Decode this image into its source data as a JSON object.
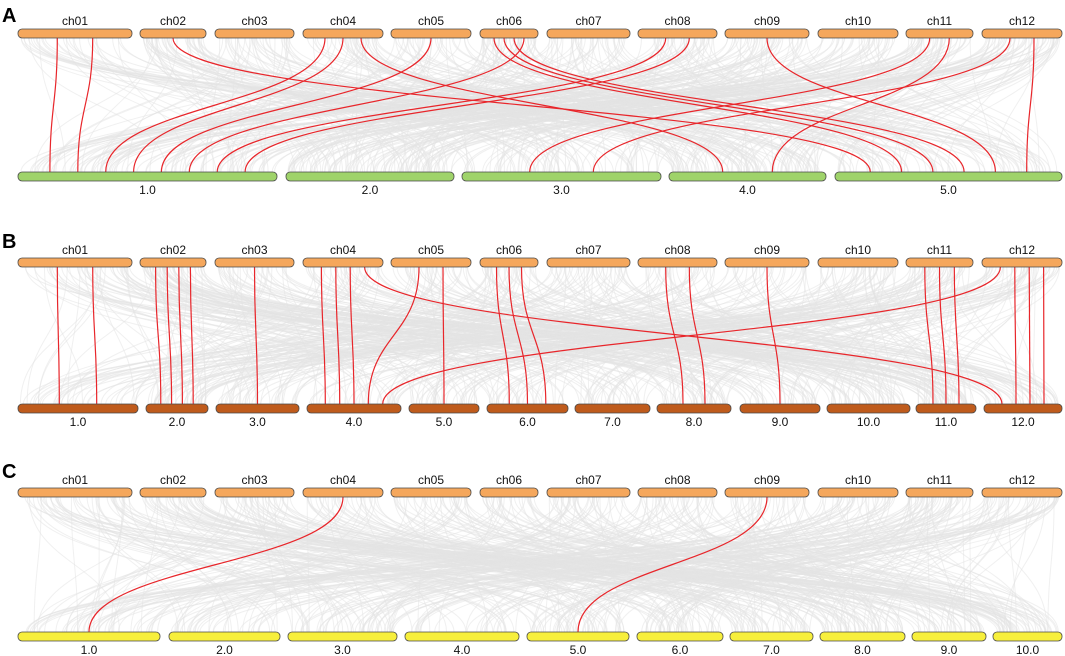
{
  "figure": {
    "background_link_color": "#e3e3e3",
    "highlight_link_color": "#e8262b",
    "top_chromosome_color": "#f5a75c",
    "top_chromosomes": [
      "ch01",
      "ch02",
      "ch03",
      "ch04",
      "ch05",
      "ch06",
      "ch07",
      "ch08",
      "ch09",
      "ch10",
      "ch11",
      "ch12"
    ]
  },
  "panels": [
    {
      "letter": "A",
      "bottom_color": "#9fd36a",
      "bottom_chromosomes": [
        "1.0",
        "2.0",
        "3.0",
        "4.0",
        "5.0"
      ],
      "highlighted_links": [
        {
          "from": "ch01",
          "to": "1.0"
        },
        {
          "from": "ch01",
          "to": "1.0"
        },
        {
          "from": "ch02",
          "to": "5.0"
        },
        {
          "from": "ch04",
          "to": "1.0"
        },
        {
          "from": "ch04",
          "to": "1.0"
        },
        {
          "from": "ch04",
          "to": "4.0"
        },
        {
          "from": "ch05",
          "to": "1.0"
        },
        {
          "from": "ch06",
          "to": "5.0"
        },
        {
          "from": "ch06",
          "to": "5.0"
        },
        {
          "from": "ch06",
          "to": "5.0"
        },
        {
          "from": "ch06",
          "to": "1.0"
        },
        {
          "from": "ch08",
          "to": "1.0"
        },
        {
          "from": "ch08",
          "to": "1.0"
        },
        {
          "from": "ch09",
          "to": "5.0"
        },
        {
          "from": "ch11",
          "to": "3.0"
        },
        {
          "from": "ch11",
          "to": "4.0"
        },
        {
          "from": "ch12",
          "to": "3.0"
        },
        {
          "from": "ch12",
          "to": "5.0"
        }
      ]
    },
    {
      "letter": "B",
      "bottom_color": "#bf5b1c",
      "bottom_chromosomes": [
        "1.0",
        "2.0",
        "3.0",
        "4.0",
        "5.0",
        "6.0",
        "7.0",
        "8.0",
        "9.0",
        "10.0",
        "11.0",
        "12.0"
      ],
      "highlighted_links": [
        {
          "from": "ch01",
          "to": "1.0"
        },
        {
          "from": "ch01",
          "to": "1.0"
        },
        {
          "from": "ch02",
          "to": "2.0"
        },
        {
          "from": "ch02",
          "to": "2.0"
        },
        {
          "from": "ch02",
          "to": "2.0"
        },
        {
          "from": "ch02",
          "to": "2.0"
        },
        {
          "from": "ch03",
          "to": "3.0"
        },
        {
          "from": "ch04",
          "to": "4.0"
        },
        {
          "from": "ch04",
          "to": "4.0"
        },
        {
          "from": "ch04",
          "to": "4.0"
        },
        {
          "from": "ch04",
          "to": "12.0"
        },
        {
          "from": "ch05",
          "to": "4.0"
        },
        {
          "from": "ch05",
          "to": "5.0"
        },
        {
          "from": "ch06",
          "to": "6.0"
        },
        {
          "from": "ch06",
          "to": "6.0"
        },
        {
          "from": "ch06",
          "to": "6.0"
        },
        {
          "from": "ch08",
          "to": "8.0"
        },
        {
          "from": "ch08",
          "to": "8.0"
        },
        {
          "from": "ch09",
          "to": "9.0"
        },
        {
          "from": "ch11",
          "to": "11.0"
        },
        {
          "from": "ch11",
          "to": "11.0"
        },
        {
          "from": "ch11",
          "to": "11.0"
        },
        {
          "from": "ch12",
          "to": "4.0"
        },
        {
          "from": "ch12",
          "to": "12.0"
        },
        {
          "from": "ch12",
          "to": "12.0"
        },
        {
          "from": "ch12",
          "to": "12.0"
        }
      ]
    },
    {
      "letter": "C",
      "bottom_color": "#f7ef3c",
      "bottom_chromosomes": [
        "1.0",
        "2.0",
        "3.0",
        "4.0",
        "5.0",
        "6.0",
        "7.0",
        "8.0",
        "9.0",
        "10.0"
      ],
      "highlighted_links": [
        {
          "from": "ch04",
          "to": "1.0"
        },
        {
          "from": "ch09",
          "to": "5.0"
        }
      ]
    }
  ]
}
